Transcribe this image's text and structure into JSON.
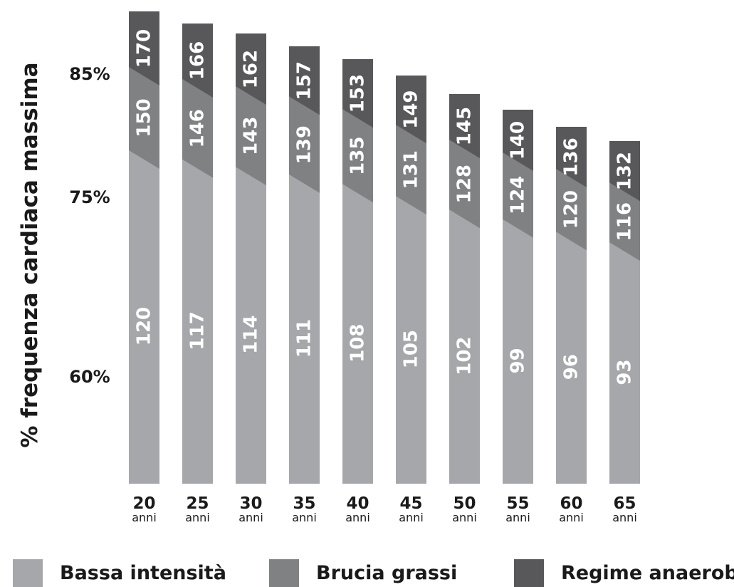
{
  "chart_data": {
    "type": "bar",
    "stacked": true,
    "ylabel": "% frequenza cardiaca massima",
    "y_ticks": [
      "85%",
      "75%",
      "60%"
    ],
    "categories": [
      "20",
      "25",
      "30",
      "35",
      "40",
      "45",
      "50",
      "55",
      "60",
      "65"
    ],
    "category_unit": "anni",
    "series": [
      {
        "name": "Bassa intensità",
        "color": "#a6a7aa",
        "values": [
          120,
          117,
          114,
          111,
          108,
          105,
          102,
          99,
          96,
          93
        ]
      },
      {
        "name": "Brucia grassi",
        "color": "#808183",
        "values": [
          150,
          146,
          143,
          139,
          135,
          131,
          128,
          124,
          120,
          116
        ]
      },
      {
        "name": "Regime anaerobico",
        "color": "#58585a",
        "values": [
          170,
          166,
          162,
          157,
          153,
          149,
          145,
          140,
          136,
          132
        ]
      }
    ],
    "legend_position": "bottom",
    "grid": false
  }
}
